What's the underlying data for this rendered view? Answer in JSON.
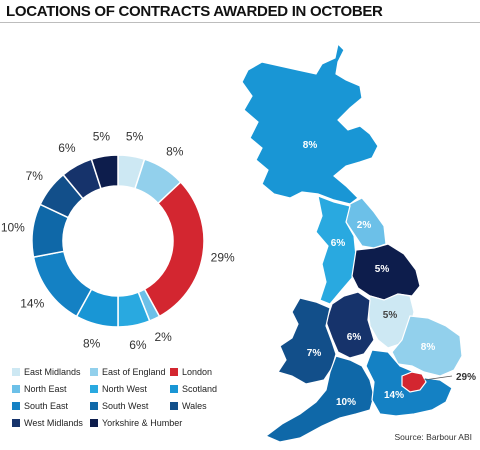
{
  "chart_data": {
    "type": "pie",
    "title": "LOCATIONS OF CONTRACTS AWARDED IN OCTOBER",
    "source": "Source: Barbour ABI",
    "slices": [
      {
        "name": "East Midlands",
        "value": 5,
        "label": "5%",
        "color": "#cde8f3"
      },
      {
        "name": "East of England",
        "value": 8,
        "label": "8%",
        "color": "#92d0ec"
      },
      {
        "name": "London",
        "value": 29,
        "label": "29%",
        "color": "#d32630"
      },
      {
        "name": "North East",
        "value": 2,
        "label": "2%",
        "color": "#6cc0e8"
      },
      {
        "name": "North West",
        "value": 6,
        "label": "6%",
        "color": "#29a9e0"
      },
      {
        "name": "Scotland",
        "value": 8,
        "label": "8%",
        "color": "#1996d5"
      },
      {
        "name": "South East",
        "value": 14,
        "label": "14%",
        "color": "#1481c4"
      },
      {
        "name": "South West",
        "value": 10,
        "label": "10%",
        "color": "#0f68a8"
      },
      {
        "name": "Wales",
        "value": 7,
        "label": "7%",
        "color": "#124f8a"
      },
      {
        "name": "West Midlands",
        "value": 6,
        "label": "6%",
        "color": "#16336b"
      },
      {
        "name": "Yorkshire & Humber",
        "value": 5,
        "label": "5%",
        "color": "#0d1d4c"
      }
    ],
    "map_labels": [
      {
        "region": "Scotland",
        "label": "8%"
      },
      {
        "region": "North East",
        "label": "2%"
      },
      {
        "region": "North West",
        "label": "6%"
      },
      {
        "region": "Yorkshire & Humber",
        "label": "5%"
      },
      {
        "region": "East Midlands",
        "label": "5%"
      },
      {
        "region": "West Midlands",
        "label": "6%"
      },
      {
        "region": "Wales",
        "label": "7%"
      },
      {
        "region": "East of England",
        "label": "8%"
      },
      {
        "region": "South West",
        "label": "10%"
      },
      {
        "region": "South East",
        "label": "14%"
      },
      {
        "region": "London",
        "label": "29%"
      }
    ]
  }
}
